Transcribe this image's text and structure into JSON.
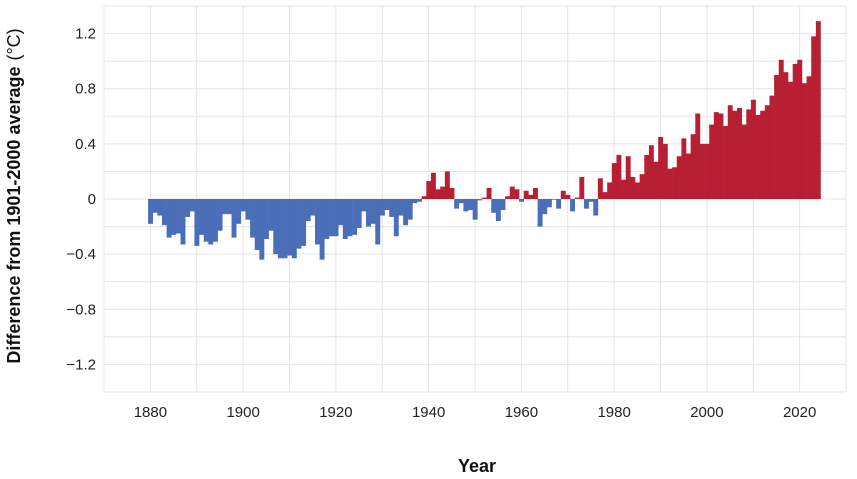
{
  "chart_data": {
    "type": "bar",
    "title": "",
    "xlabel": "Year",
    "ylabel": "Difference from 1901-2000 average",
    "ylabel_unit": "(°C)",
    "xlim": [
      1870,
      2030
    ],
    "ylim": [
      -1.4,
      1.4
    ],
    "xticks": [
      1880,
      1900,
      1920,
      1940,
      1960,
      1980,
      2000,
      2020
    ],
    "yticks": [
      -1.2,
      -0.8,
      -0.4,
      0,
      0.4,
      0.8,
      1.2
    ],
    "ytick_labels": [
      "−1.2",
      "−0.8",
      "−0.4",
      "0",
      "0.4",
      "0.8",
      "1.2"
    ],
    "grid": true,
    "colors": {
      "positive": "#b81f33",
      "negative": "#4a6fb8"
    },
    "start_year": 1880,
    "values": [
      -0.18,
      -0.1,
      -0.12,
      -0.19,
      -0.28,
      -0.26,
      -0.25,
      -0.33,
      -0.13,
      -0.09,
      -0.34,
      -0.26,
      -0.31,
      -0.33,
      -0.31,
      -0.23,
      -0.11,
      -0.11,
      -0.28,
      -0.18,
      -0.09,
      -0.15,
      -0.28,
      -0.37,
      -0.44,
      -0.29,
      -0.23,
      -0.4,
      -0.43,
      -0.43,
      -0.41,
      -0.43,
      -0.36,
      -0.34,
      -0.16,
      -0.12,
      -0.33,
      -0.44,
      -0.29,
      -0.27,
      -0.27,
      -0.19,
      -0.29,
      -0.27,
      -0.26,
      -0.21,
      -0.09,
      -0.2,
      -0.18,
      -0.33,
      -0.12,
      -0.08,
      -0.13,
      -0.27,
      -0.12,
      -0.19,
      -0.15,
      -0.03,
      -0.02,
      0.02,
      0.13,
      0.19,
      0.07,
      0.09,
      0.2,
      0.08,
      -0.07,
      -0.03,
      -0.09,
      -0.08,
      -0.15,
      -0.01,
      0.01,
      0.08,
      -0.1,
      -0.16,
      -0.08,
      0.02,
      0.09,
      0.07,
      -0.02,
      0.06,
      0.03,
      0.08,
      -0.2,
      -0.11,
      -0.06,
      0.0,
      -0.07,
      0.06,
      0.03,
      -0.09,
      0.01,
      0.16,
      -0.07,
      -0.02,
      -0.12,
      0.15,
      0.05,
      0.12,
      0.26,
      0.32,
      0.14,
      0.31,
      0.16,
      0.12,
      0.18,
      0.32,
      0.39,
      0.27,
      0.45,
      0.4,
      0.22,
      0.23,
      0.31,
      0.44,
      0.33,
      0.47,
      0.62,
      0.4,
      0.4,
      0.54,
      0.63,
      0.62,
      0.53,
      0.68,
      0.64,
      0.66,
      0.54,
      0.65,
      0.72,
      0.61,
      0.64,
      0.68,
      0.75,
      0.9,
      1.01,
      0.92,
      0.85,
      0.98,
      1.01,
      0.84,
      0.89,
      1.18,
      1.29
    ]
  }
}
